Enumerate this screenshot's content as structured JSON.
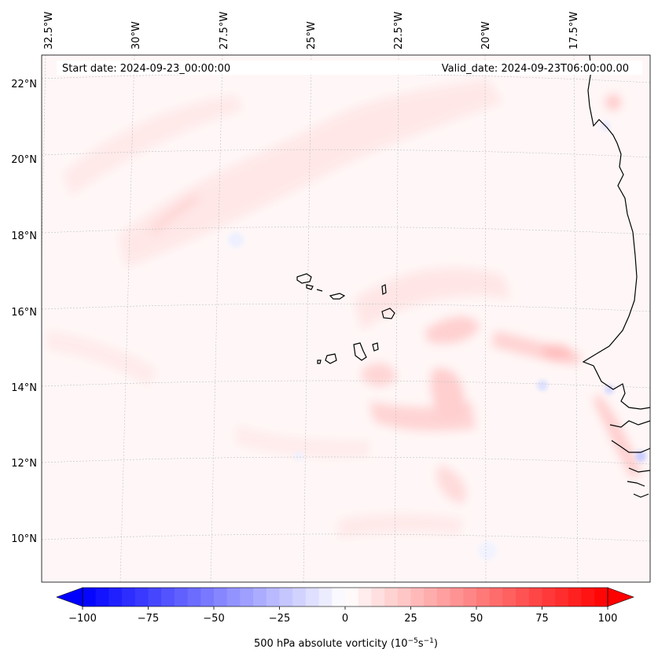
{
  "map": {
    "start_label": "Start date: 2024-09-23_00:00:00",
    "valid_label": "Valid_date: 2024-09-23T06:00:00.00",
    "lon_labels": [
      "32.5°W",
      "30°W",
      "27.5°W",
      "25°W",
      "22.5°W",
      "20°W",
      "17.5°W"
    ],
    "lat_labels": [
      "22°N",
      "20°N",
      "18°N",
      "16°N",
      "14°N",
      "12°N",
      "10°N"
    ]
  },
  "colorbar": {
    "ticks": [
      "−100",
      "−75",
      "−50",
      "−25",
      "0",
      "25",
      "50",
      "75",
      "100"
    ],
    "tick_values": [
      -100,
      -75,
      -50,
      -25,
      0,
      25,
      50,
      75,
      100
    ],
    "min": -100,
    "max": 100,
    "step": 5,
    "label_main": "500 hPa absolute vorticity (10",
    "label_exp1": "−5",
    "label_mid": "s",
    "label_exp2": "−1",
    "label_end": ")",
    "colors": {
      "negative": "#0000ff",
      "zero": "#ffffff",
      "positive": "#ff0000"
    }
  }
}
